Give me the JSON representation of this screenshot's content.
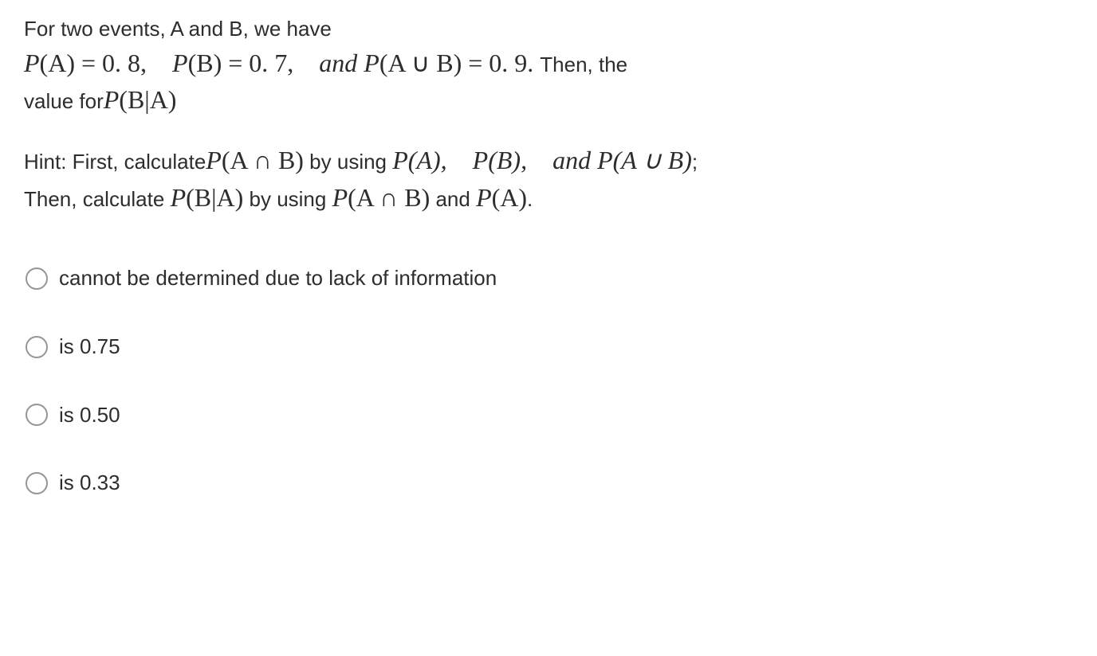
{
  "question": {
    "intro": "For two events, A and B, we have",
    "equation_parts": {
      "pa_lhs": "P",
      "pa_var": "(A)",
      "eq1": " = 0. 8, ",
      "pb_lhs": "P",
      "pb_var": "(B)",
      "eq2": " = 0. 7, ",
      "and1": "and ",
      "pab_lhs": "P",
      "pab_var": "(A ∪ B)",
      "eq3": " = 0. 9. ",
      "then": "Then, the",
      "value_for": "value for",
      "pba_lhs": "P",
      "pba_var": "(B|A)"
    }
  },
  "hint": {
    "prefix1": "Hint: First, calculate",
    "pab_int_lhs": "P",
    "pab_int_var": "(A ∩ B)",
    "mid1": " by using ",
    "pa2": "P(A), P(B), and P(A ∪ B)",
    "semi": ";",
    "prefix2": "Then, calculate ",
    "pba2_lhs": "P",
    "pba2_var": "(B|A)",
    "mid2": " by using ",
    "pab2_lhs": "P",
    "pab2_var": "(A ∩ B)",
    "and2": " and ",
    "pa3_lhs": "P",
    "pa3_var": "(A)",
    "period": "."
  },
  "options": [
    {
      "label": "cannot be determined due to lack of information"
    },
    {
      "label": "is 0.75"
    },
    {
      "label": "is 0.50"
    },
    {
      "label": "is 0.33"
    }
  ],
  "styling": {
    "text_color": "#2d2d2d",
    "background_color": "#ffffff",
    "radio_border_color": "#959595",
    "body_fontsize": 26,
    "math_fontsize": 32,
    "option_gap": 48
  }
}
